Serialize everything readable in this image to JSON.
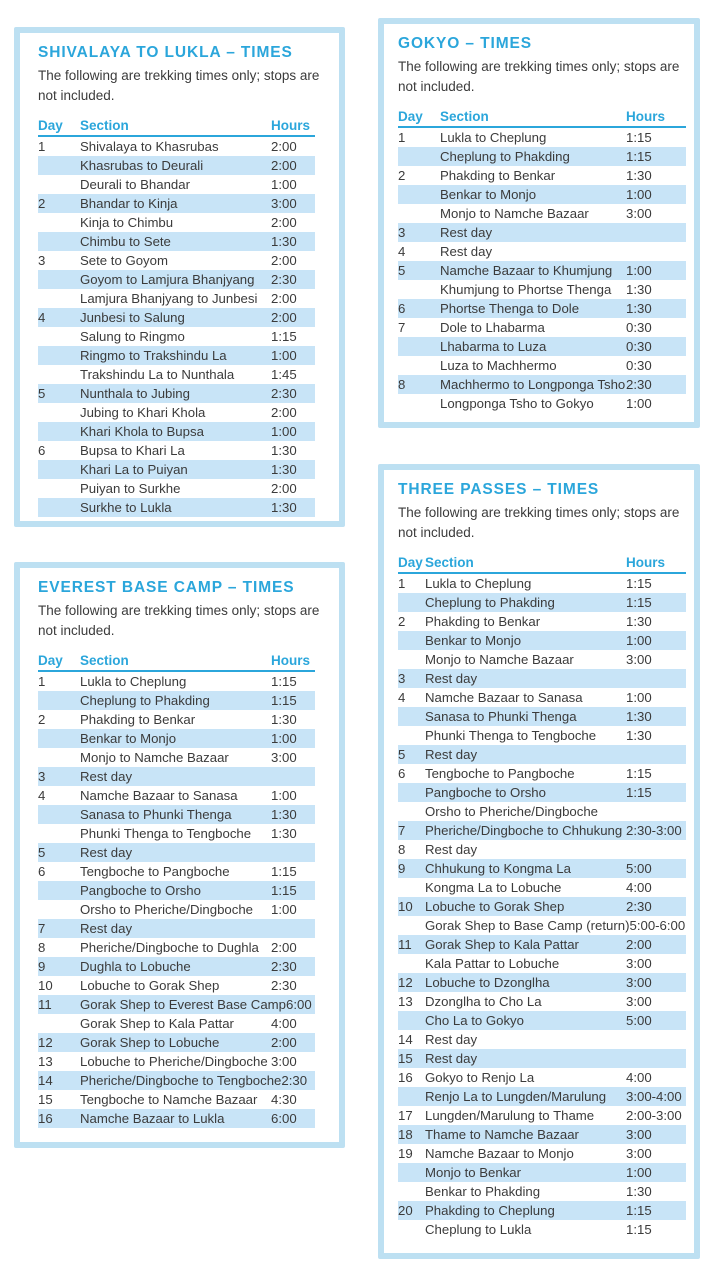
{
  "colors": {
    "accent": "#2BA6DB",
    "stripe": "#C8E4F7",
    "card_border": "#BDE0F2",
    "text": "#3B3B3B",
    "page_bg": "#FFFFFF"
  },
  "cards": [
    {
      "id": "shivalaya",
      "title": "SHIVALAYA TO LUKLA – TIMES",
      "subtitle": "The following are trekking times only; stops are not included.",
      "columns": [
        "Day",
        "Section",
        "Hours"
      ],
      "rows": [
        {
          "day": "1",
          "section": "Shivalaya to Khasrubas",
          "hours": "2:00"
        },
        {
          "day": "",
          "section": "Khasrubas to Deurali",
          "hours": "2:00"
        },
        {
          "day": "",
          "section": "Deurali to Bhandar",
          "hours": "1:00"
        },
        {
          "day": "2",
          "section": "Bhandar to Kinja",
          "hours": "3:00"
        },
        {
          "day": "",
          "section": "Kinja to Chimbu",
          "hours": "2:00"
        },
        {
          "day": "",
          "section": "Chimbu to Sete",
          "hours": "1:30"
        },
        {
          "day": "3",
          "section": "Sete to Goyom",
          "hours": "2:00"
        },
        {
          "day": "",
          "section": "Goyom to Lamjura Bhanjyang",
          "hours": "2:30"
        },
        {
          "day": "",
          "section": "Lamjura Bhanjyang to Junbesi",
          "hours": "2:00"
        },
        {
          "day": "4",
          "section": "Junbesi to Salung",
          "hours": "2:00"
        },
        {
          "day": "",
          "section": "Salung to Ringmo",
          "hours": "1:15"
        },
        {
          "day": "",
          "section": "Ringmo to Trakshindu La",
          "hours": "1:00"
        },
        {
          "day": "",
          "section": "Trakshindu La to Nunthala",
          "hours": "1:45"
        },
        {
          "day": "5",
          "section": "Nunthala to Jubing",
          "hours": "2:30"
        },
        {
          "day": "",
          "section": "Jubing to Khari Khola",
          "hours": "2:00"
        },
        {
          "day": "",
          "section": "Khari Khola to Bupsa",
          "hours": "1:00"
        },
        {
          "day": "6",
          "section": "Bupsa to Khari La",
          "hours": "1:30"
        },
        {
          "day": "",
          "section": "Khari La to Puiyan",
          "hours": "1:30"
        },
        {
          "day": "",
          "section": "Puiyan to Surkhe",
          "hours": "2:00"
        },
        {
          "day": "",
          "section": "Surkhe to Lukla",
          "hours": "1:30"
        }
      ]
    },
    {
      "id": "gokyo",
      "title": "GOKYO – TIMES",
      "subtitle": "The following are trekking times only; stops are not included.",
      "columns": [
        "Day",
        "Section",
        "Hours"
      ],
      "rows": [
        {
          "day": "1",
          "section": "Lukla to Cheplung",
          "hours": "1:15"
        },
        {
          "day": "",
          "section": "Cheplung to Phakding",
          "hours": "1:15"
        },
        {
          "day": "2",
          "section": "Phakding to Benkar",
          "hours": "1:30"
        },
        {
          "day": "",
          "section": "Benkar to Monjo",
          "hours": "1:00"
        },
        {
          "day": "",
          "section": "Monjo to Namche Bazaar",
          "hours": "3:00"
        },
        {
          "day": "3",
          "section": "Rest day",
          "hours": ""
        },
        {
          "day": "4",
          "section": "Rest day",
          "hours": ""
        },
        {
          "day": "5",
          "section": "Namche Bazaar to Khumjung",
          "hours": "1:00"
        },
        {
          "day": "",
          "section": "Khumjung to Phortse Thenga",
          "hours": "1:30"
        },
        {
          "day": "6",
          "section": "Phortse Thenga to Dole",
          "hours": "1:30"
        },
        {
          "day": "7",
          "section": "Dole to Lhabarma",
          "hours": "0:30"
        },
        {
          "day": "",
          "section": "Lhabarma to Luza",
          "hours": "0:30"
        },
        {
          "day": "",
          "section": "Luza to Machhermo",
          "hours": "0:30"
        },
        {
          "day": "8",
          "section": "Machhermo to Longponga Tsho",
          "hours": "2:30"
        },
        {
          "day": "",
          "section": "Longponga Tsho to Gokyo",
          "hours": "1:00"
        }
      ]
    },
    {
      "id": "everest-base-camp",
      "title": "EVEREST BASE CAMP – TIMES",
      "subtitle": "The following are trekking times only; stops are not included.",
      "columns": [
        "Day",
        "Section",
        "Hours"
      ],
      "rows": [
        {
          "day": "1",
          "section": "Lukla to Cheplung",
          "hours": "1:15"
        },
        {
          "day": "",
          "section": "Cheplung to Phakding",
          "hours": "1:15"
        },
        {
          "day": "2",
          "section": "Phakding to Benkar",
          "hours": "1:30"
        },
        {
          "day": "",
          "section": "Benkar to Monjo",
          "hours": "1:00"
        },
        {
          "day": "",
          "section": "Monjo to Namche Bazaar",
          "hours": "3:00"
        },
        {
          "day": "3",
          "section": "Rest day",
          "hours": ""
        },
        {
          "day": "4",
          "section": "Namche Bazaar to Sanasa",
          "hours": "1:00"
        },
        {
          "day": "",
          "section": "Sanasa to Phunki Thenga",
          "hours": "1:30"
        },
        {
          "day": "",
          "section": "Phunki Thenga to Tengboche",
          "hours": "1:30"
        },
        {
          "day": "5",
          "section": "Rest day",
          "hours": ""
        },
        {
          "day": "6",
          "section": "Tengboche to Pangboche",
          "hours": "1:15"
        },
        {
          "day": "",
          "section": "Pangboche to Orsho",
          "hours": "1:15"
        },
        {
          "day": "",
          "section": "Orsho to Pheriche/Dingboche",
          "hours": "1:00"
        },
        {
          "day": "7",
          "section": "Rest day",
          "hours": ""
        },
        {
          "day": "8",
          "section": "Pheriche/Dingboche to Dughla",
          "hours": "2:00"
        },
        {
          "day": "9",
          "section": "Dughla to Lobuche",
          "hours": "2:30"
        },
        {
          "day": "10",
          "section": "Lobuche to Gorak Shep",
          "hours": "2:30"
        },
        {
          "day": "11",
          "section": "Gorak Shep to Everest Base Camp",
          "hours": "6:00"
        },
        {
          "day": "",
          "section": "Gorak Shep to Kala Pattar",
          "hours": "4:00"
        },
        {
          "day": "12",
          "section": "Gorak Shep to Lobuche",
          "hours": "2:00"
        },
        {
          "day": "13",
          "section": "Lobuche to Pheriche/Dingboche",
          "hours": "3:00"
        },
        {
          "day": "14",
          "section": "Pheriche/Dingboche to Tengboche",
          "hours": "2:30"
        },
        {
          "day": "15",
          "section": "Tengboche to Namche Bazaar",
          "hours": "4:30"
        },
        {
          "day": "16",
          "section": "Namche Bazaar to Lukla",
          "hours": "6:00"
        }
      ]
    },
    {
      "id": "three-passes",
      "title": "THREE PASSES – TIMES",
      "subtitle": "The following are trekking times only; stops are not included.",
      "columns": [
        "Day",
        "Section",
        "Hours"
      ],
      "rows": [
        {
          "day": "1",
          "section": "Lukla to Cheplung",
          "hours": "1:15"
        },
        {
          "day": "",
          "section": "Cheplung to Phakding",
          "hours": "1:15"
        },
        {
          "day": "2",
          "section": "Phakding to Benkar",
          "hours": "1:30"
        },
        {
          "day": "",
          "section": "Benkar to Monjo",
          "hours": "1:00"
        },
        {
          "day": "",
          "section": "Monjo to Namche Bazaar",
          "hours": "3:00"
        },
        {
          "day": "3",
          "section": "Rest day",
          "hours": ""
        },
        {
          "day": "4",
          "section": "Namche Bazaar to Sanasa",
          "hours": "1:00"
        },
        {
          "day": "",
          "section": "Sanasa to Phunki Thenga",
          "hours": "1:30"
        },
        {
          "day": "",
          "section": "Phunki Thenga to Tengboche",
          "hours": "1:30"
        },
        {
          "day": "5",
          "section": "Rest day",
          "hours": ""
        },
        {
          "day": "6",
          "section": "Tengboche to Pangboche",
          "hours": "1:15"
        },
        {
          "day": "",
          "section": "Pangboche to Orsho",
          "hours": "1:15"
        },
        {
          "day": "",
          "section": "Orsho to Pheriche/Dingboche",
          "hours": ""
        },
        {
          "day": "7",
          "section": "Pheriche/Dingboche to Chhukung",
          "hours": "2:30-3:00"
        },
        {
          "day": "8",
          "section": "Rest day",
          "hours": ""
        },
        {
          "day": "9",
          "section": "Chhukung to Kongma La",
          "hours": "5:00"
        },
        {
          "day": "",
          "section": "Kongma La to Lobuche",
          "hours": "4:00"
        },
        {
          "day": "10",
          "section": "Lobuche to Gorak Shep",
          "hours": "2:30"
        },
        {
          "day": "",
          "section": "Gorak Shep to Base Camp (return)",
          "hours": "5:00-6:00"
        },
        {
          "day": "11",
          "section": "Gorak Shep to Kala Pattar",
          "hours": "2:00"
        },
        {
          "day": "",
          "section": "Kala Pattar to Lobuche",
          "hours": "3:00"
        },
        {
          "day": "12",
          "section": "Lobuche to Dzonglha",
          "hours": "3:00"
        },
        {
          "day": "13",
          "section": "Dzonglha to Cho La",
          "hours": "3:00"
        },
        {
          "day": "",
          "section": "Cho La to Gokyo",
          "hours": "5:00"
        },
        {
          "day": "14",
          "section": "Rest day",
          "hours": ""
        },
        {
          "day": "15",
          "section": "Rest day",
          "hours": ""
        },
        {
          "day": "16",
          "section": "Gokyo to Renjo La",
          "hours": "4:00"
        },
        {
          "day": "",
          "section": "Renjo La to Lungden/Marulung",
          "hours": "3:00-4:00"
        },
        {
          "day": "17",
          "section": "Lungden/Marulung to Thame",
          "hours": "2:00-3:00"
        },
        {
          "day": "18",
          "section": "Thame to Namche Bazaar",
          "hours": "3:00"
        },
        {
          "day": "19",
          "section": "Namche Bazaar to Monjo",
          "hours": "3:00"
        },
        {
          "day": "",
          "section": "Monjo to Benkar",
          "hours": "1:00"
        },
        {
          "day": "",
          "section": "Benkar to Phakding",
          "hours": "1:30"
        },
        {
          "day": "20",
          "section": "Phakding to Cheplung",
          "hours": "1:15"
        },
        {
          "day": "",
          "section": "Cheplung to Lukla",
          "hours": "1:15"
        }
      ]
    }
  ]
}
